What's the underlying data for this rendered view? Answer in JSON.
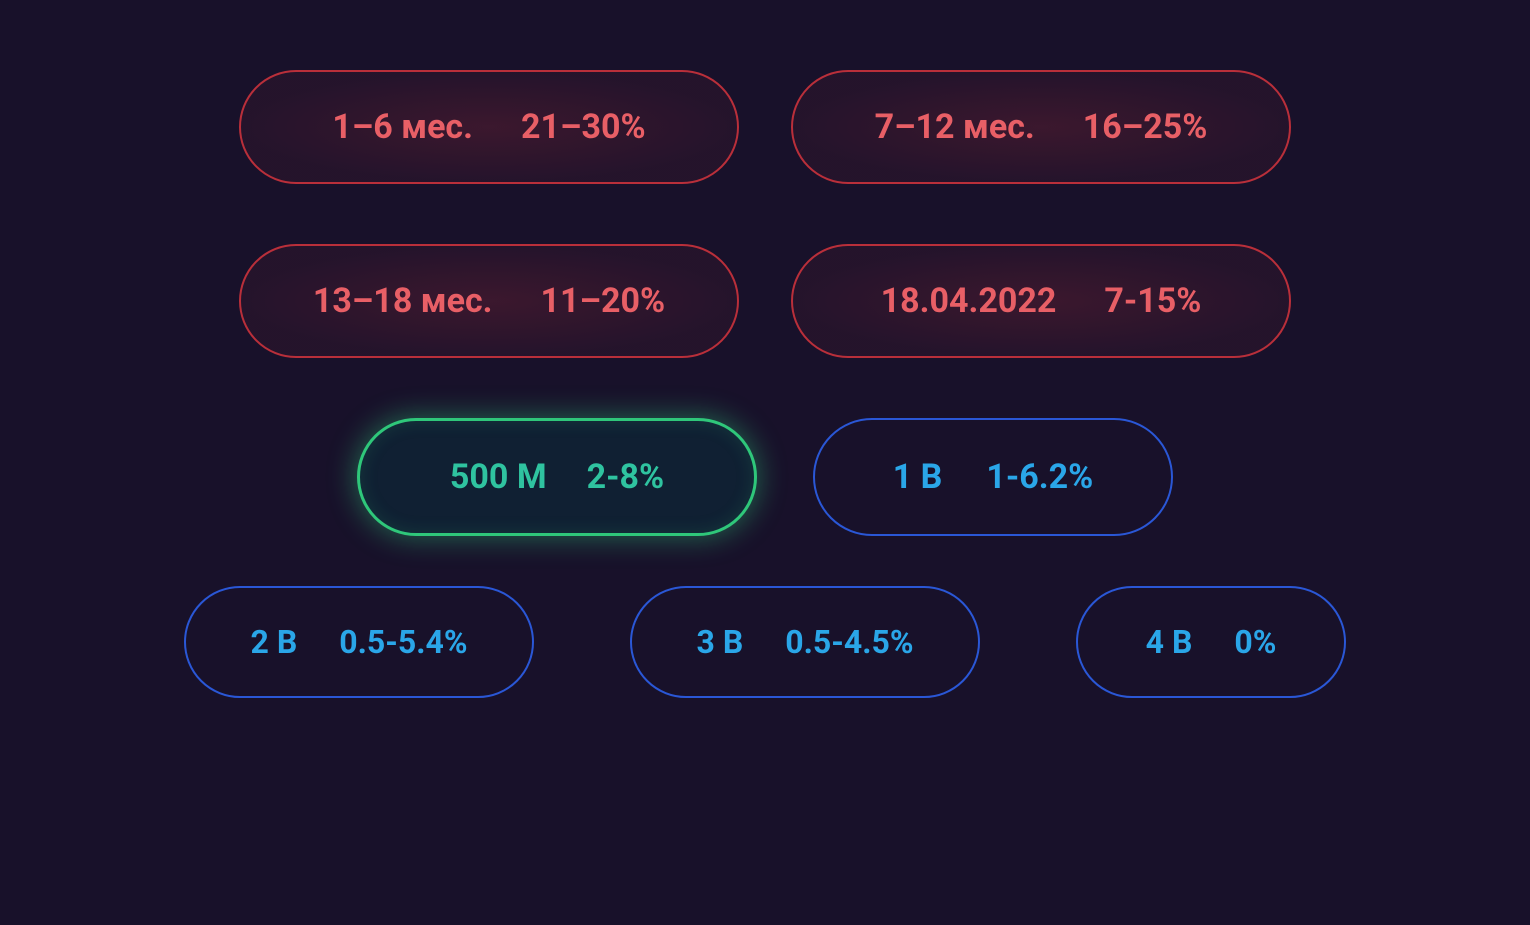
{
  "colors": {
    "background": "#18112a",
    "red_text": "#e85f66",
    "red_border": "#b92f3a",
    "green_text": "#2fc3a0",
    "green_border": "#2fc77a",
    "blue_text": "#2aa6e8",
    "blue_border": "#2a57d6"
  },
  "typography": {
    "font_weight": 700,
    "large_pill_fontsize": 34,
    "small_pill_fontsize": 32
  },
  "rows": [
    {
      "variant": "red",
      "items": [
        {
          "label": "1–6 мес.",
          "value": "21–30%"
        },
        {
          "label": "7–12 мес.",
          "value": "16–25%"
        }
      ]
    },
    {
      "variant": "red",
      "items": [
        {
          "label": "13–18 мес.",
          "value": "11–20%"
        },
        {
          "label": "18.04.2022",
          "value": "7-15%"
        }
      ]
    },
    {
      "variant": "mixed",
      "items": [
        {
          "variant": "green",
          "label": "500 M",
          "value": "2-8%"
        },
        {
          "variant": "blue-med",
          "label": "1 B",
          "value": "1-6.2%"
        }
      ]
    },
    {
      "variant": "blue-sm",
      "items": [
        {
          "label": "2 B",
          "value": "0.5-5.4%"
        },
        {
          "label": "3 B",
          "value": "0.5-4.5%"
        },
        {
          "label": "4 B",
          "value": "0%",
          "narrow": true
        }
      ]
    }
  ]
}
